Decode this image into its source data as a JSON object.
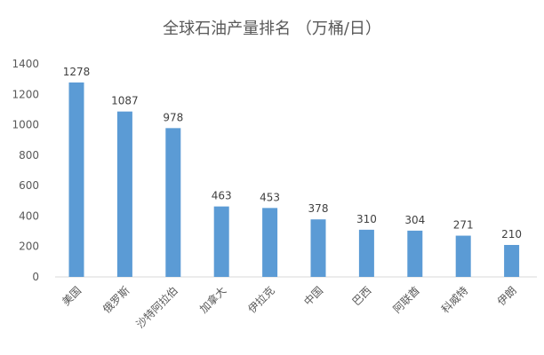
{
  "chart_data": {
    "type": "bar",
    "title": "全球石油产量排名 （万桶/日）",
    "categories": [
      "美国",
      "俄罗斯",
      "沙特阿拉伯",
      "加拿大",
      "伊拉克",
      "中国",
      "巴西",
      "阿联酋",
      "科威特",
      "伊朗"
    ],
    "values": [
      1278,
      1087,
      978,
      463,
      453,
      378,
      310,
      304,
      271,
      210
    ],
    "ylim": [
      0,
      1400
    ],
    "yticks": [
      0,
      200,
      400,
      600,
      800,
      1000,
      1200,
      1400
    ],
    "grid": false,
    "legend": "none",
    "bar_color": "#5B9BD5"
  }
}
